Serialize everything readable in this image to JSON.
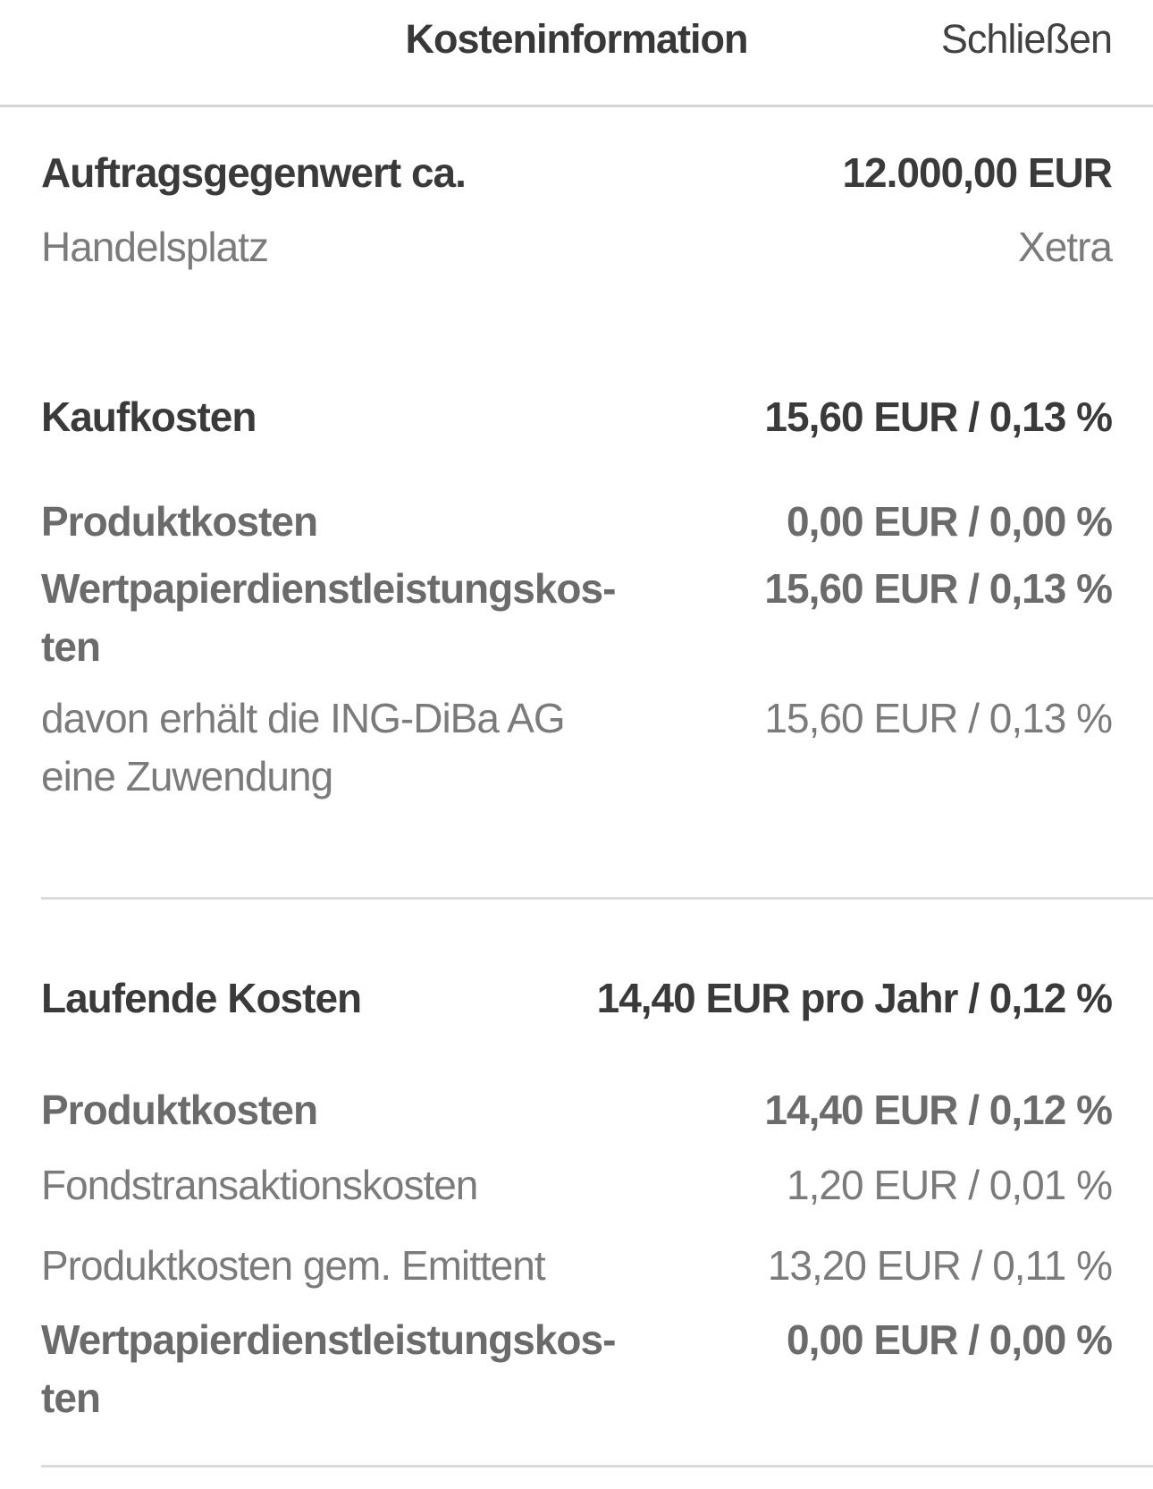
{
  "header": {
    "title": "Kosteninformation",
    "close_label": "Schließen"
  },
  "overview": {
    "rows": [
      {
        "label": "Auftragsgegenwert ca.",
        "value": "12.000,00 EUR"
      },
      {
        "label": "Handelsplatz",
        "value": "Xetra"
      }
    ]
  },
  "sections": [
    {
      "title": "Kaufkosten",
      "total": "15,60 EUR / 0,13 %",
      "rows": [
        {
          "label": "Produktkosten",
          "value": "0,00 EUR / 0,00 %"
        },
        {
          "label": "Wertpapierdienstleistungskos-\nten",
          "value": "15,60 EUR / 0,13 %"
        },
        {
          "label": "davon erhält die ING-DiBa AG\neine Zuwendung",
          "value": "15,60 EUR / 0,13 %"
        }
      ]
    },
    {
      "title": "Laufende Kosten",
      "total": "14,40 EUR pro Jahr / 0,12 %",
      "rows": [
        {
          "label": "Produktkosten",
          "value": "14,40 EUR / 0,12 %"
        },
        {
          "label": "Fondstransaktionskosten",
          "value": "1,20 EUR / 0,01 %"
        },
        {
          "label": "Produktkosten gem. Emittent",
          "value": "13,20 EUR / 0,11 %"
        },
        {
          "label": "Wertpapierdienstleistungskos-\nten",
          "value": "0,00 EUR / 0,00 %"
        }
      ]
    }
  ],
  "colors": {
    "text_dark": "#3a3a3a",
    "text_gray_strong": "#6b6b6b",
    "text_muted": "#7b7b7b",
    "divider": "#dcdcdc"
  }
}
